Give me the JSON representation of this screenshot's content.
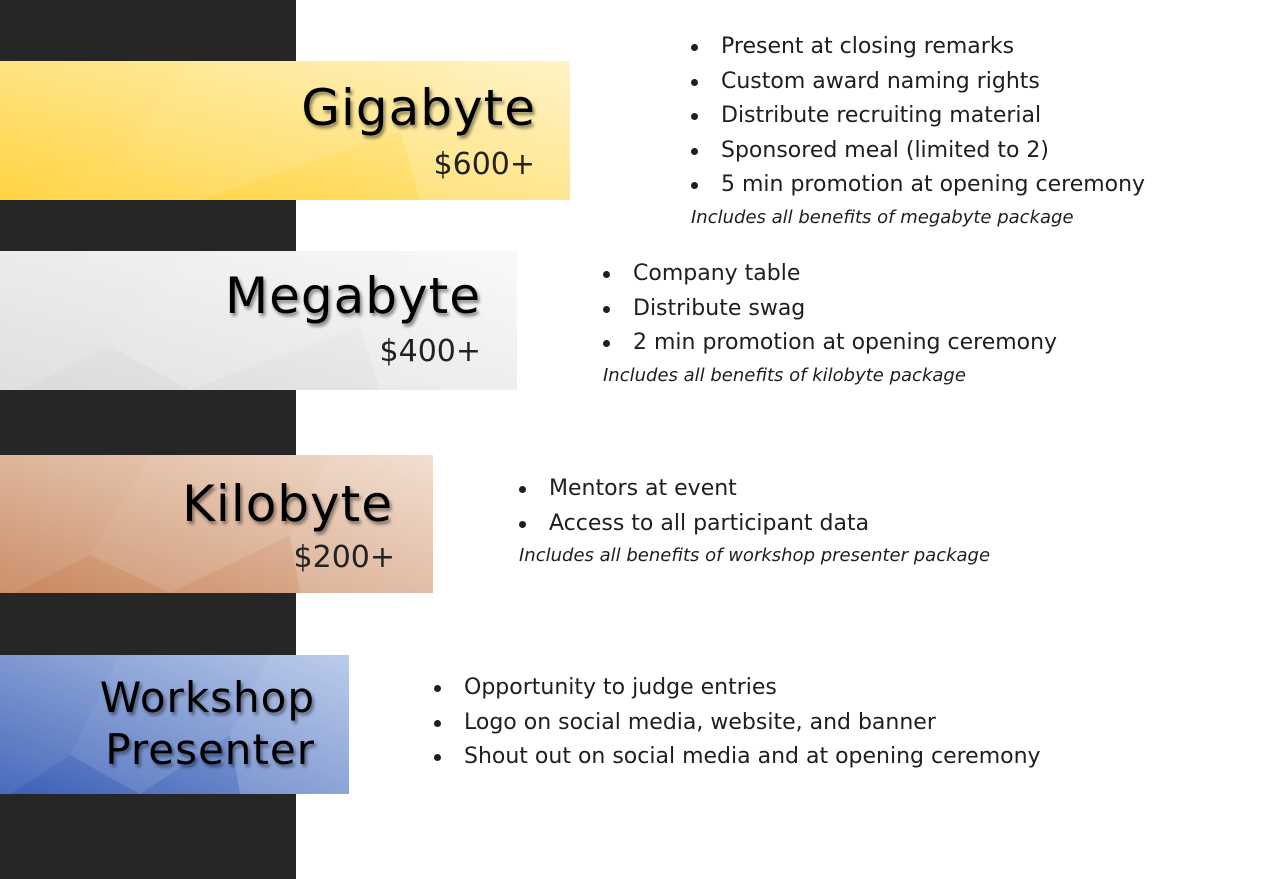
{
  "tiers": [
    {
      "name": "Gigabyte",
      "price": "$600+",
      "colors": {
        "start": "#ffd133",
        "end": "#fff0b8"
      },
      "benefits": [
        "Present at closing remarks",
        "Custom award naming rights",
        "Distribute recruiting material",
        "Sponsored meal (limited to 2)",
        "5 min promotion at opening ceremony"
      ],
      "note": "Includes all benefits of megabyte package"
    },
    {
      "name": "Megabyte",
      "price": "$400+",
      "colors": {
        "start": "#dcdcdc",
        "end": "#f6f6f6"
      },
      "benefits": [
        "Company table",
        "Distribute swag",
        "2 min promotion at opening ceremony"
      ],
      "note": "Includes all benefits of kilobyte package"
    },
    {
      "name": "Kilobyte",
      "price": "$200+",
      "colors": {
        "start": "#c98a63",
        "end": "#eed5c3"
      },
      "benefits": [
        "Mentors at event",
        "Access to all participant data"
      ],
      "note": "Includes all benefits of workshop presenter package"
    },
    {
      "name_line1": "Workshop",
      "name_line2": "Presenter",
      "colors": {
        "start": "#3d63b8",
        "end": "#a8bde4"
      },
      "benefits": [
        "Opportunity to judge entries",
        "Logo on social media, website, and banner",
        "Shout out on social media and at opening ceremony"
      ]
    }
  ]
}
